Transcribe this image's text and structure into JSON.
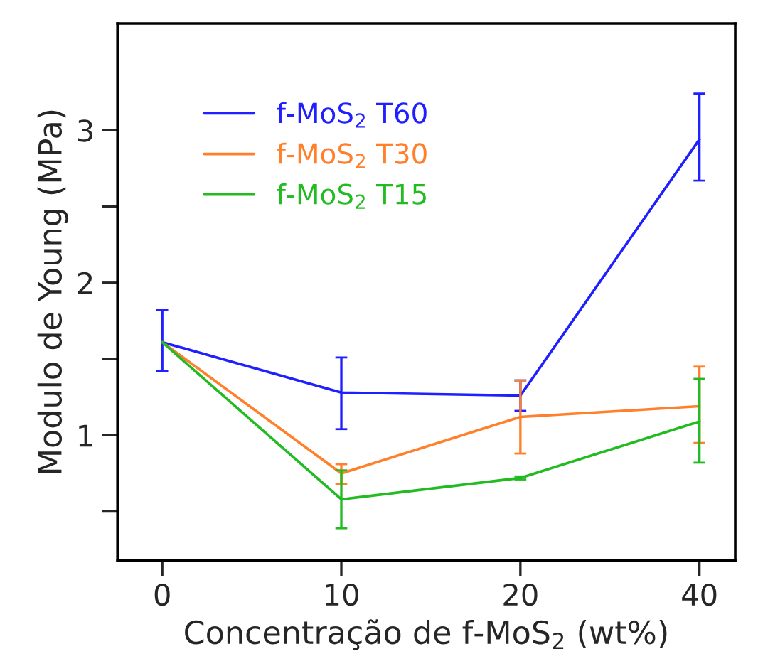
{
  "chart_data": {
    "type": "line",
    "xlabel": "Concentração de f-MoS$_{2}$ (wt%)",
    "ylabel": "Modulo de Young (MPa)",
    "categories": [
      "0",
      "10",
      "20",
      "40"
    ],
    "series": [
      {
        "name": "f-MoS$_{2}$ T60",
        "color": "#1f1fff",
        "values": [
          1.61,
          1.28,
          1.26,
          2.94
        ],
        "errors": [
          [
            1.42,
            1.82
          ],
          [
            1.04,
            1.51
          ],
          [
            1.16,
            1.36
          ],
          [
            2.67,
            3.24
          ]
        ]
      },
      {
        "name": "f-MoS$_{2}$ T30",
        "color": "#ff7f2a",
        "values": [
          1.61,
          0.75,
          1.12,
          1.19
        ],
        "errors": [
          null,
          [
            0.68,
            0.81
          ],
          [
            0.88,
            1.36
          ],
          [
            0.95,
            1.45
          ]
        ]
      },
      {
        "name": "f-MoS$_{2}$ T15",
        "color": "#22bb22",
        "values": [
          1.61,
          0.58,
          0.72,
          1.09
        ],
        "errors": [
          null,
          [
            0.39,
            0.77
          ],
          [
            0.71,
            0.73
          ],
          [
            0.82,
            1.37
          ]
        ]
      }
    ],
    "ylim": [
      0.18,
      3.7
    ],
    "yticks": [
      {
        "value": 0.5,
        "label": null
      },
      1,
      {
        "value": 1.5,
        "label": null
      },
      2,
      {
        "value": 2.5,
        "label": null
      },
      3
    ],
    "grid": false,
    "legend": "top left",
    "marker": "none",
    "line_style": "solid"
  }
}
